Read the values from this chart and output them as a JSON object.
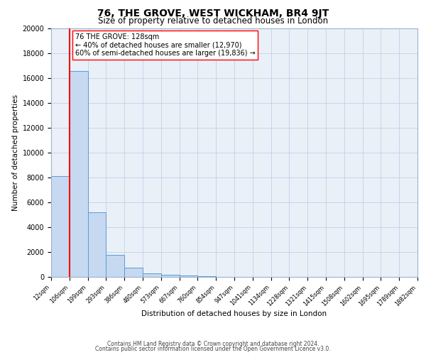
{
  "title": "76, THE GROVE, WEST WICKHAM, BR4 9JT",
  "subtitle": "Size of property relative to detached houses in London",
  "xlabel": "Distribution of detached houses by size in London",
  "ylabel": "Number of detached properties",
  "bin_labels": [
    "12sqm",
    "106sqm",
    "199sqm",
    "293sqm",
    "386sqm",
    "480sqm",
    "573sqm",
    "667sqm",
    "760sqm",
    "854sqm",
    "947sqm",
    "1041sqm",
    "1134sqm",
    "1228sqm",
    "1321sqm",
    "1415sqm",
    "1508sqm",
    "1602sqm",
    "1695sqm",
    "1789sqm",
    "1882sqm"
  ],
  "bar_heights": [
    8100,
    16600,
    5200,
    1750,
    750,
    280,
    200,
    130,
    80,
    0,
    0,
    0,
    0,
    0,
    0,
    0,
    0,
    0,
    0,
    0
  ],
  "bar_color": "#c6d9f0",
  "bar_edge_color": "#5b9bd5",
  "red_line_x": 1,
  "property_size": 128,
  "pct_smaller": 40,
  "n_smaller": 12970,
  "pct_larger": 60,
  "n_larger": 19836,
  "annotation_label": "76 THE GROVE: 128sqm",
  "ylim": [
    0,
    20000
  ],
  "yticks": [
    0,
    2000,
    4000,
    6000,
    8000,
    10000,
    12000,
    14000,
    16000,
    18000,
    20000
  ],
  "background_color": "#eaf0f8",
  "plot_bg_color": "#eaf0f8",
  "footer1": "Contains HM Land Registry data © Crown copyright and database right 2024.",
  "footer2": "Contains public sector information licensed under the Open Government Licence v3.0."
}
